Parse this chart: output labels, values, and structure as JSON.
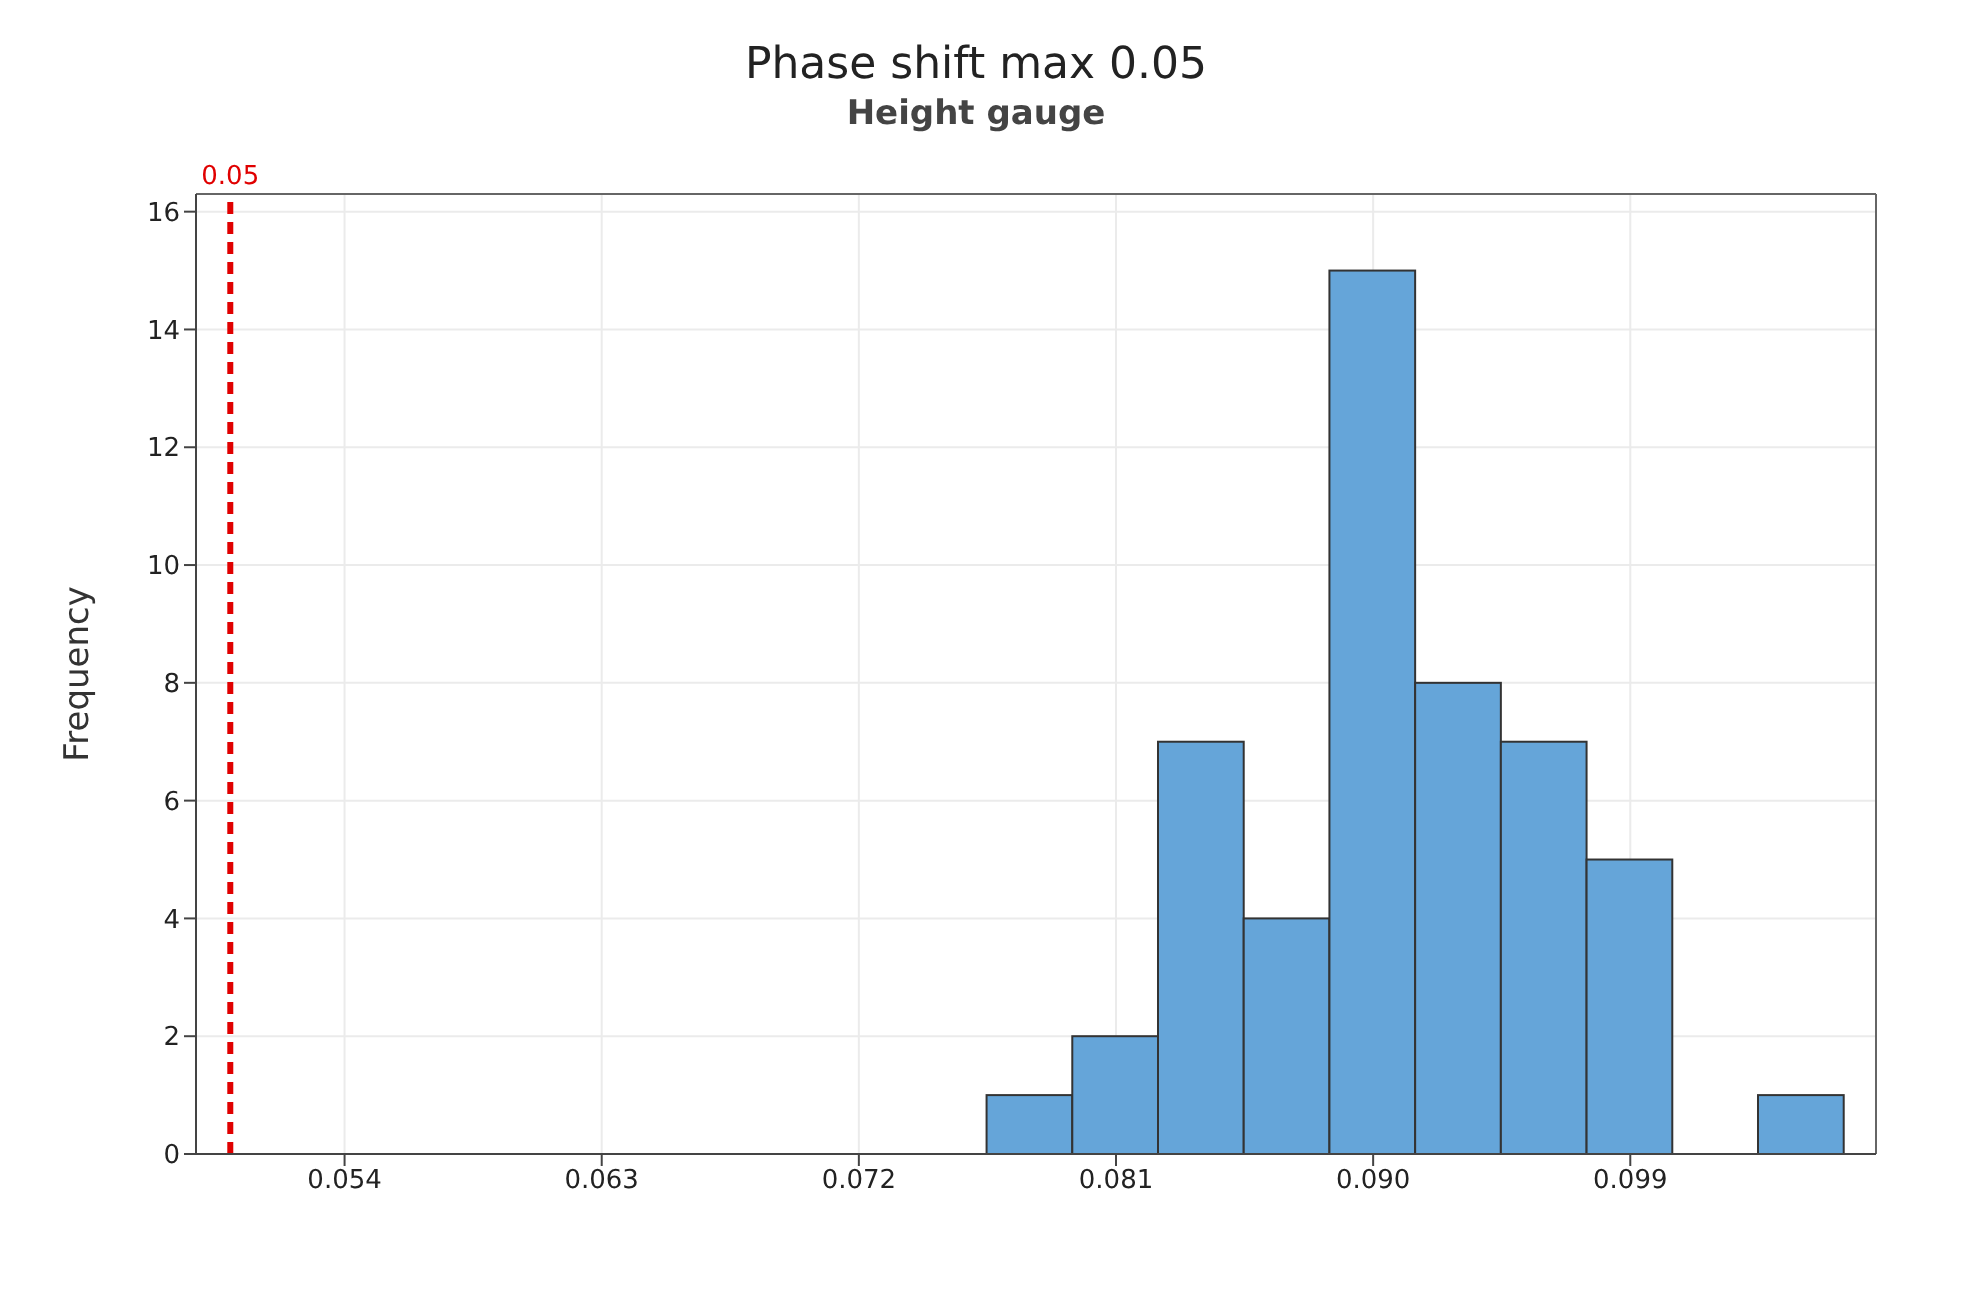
{
  "chart_data": {
    "type": "histogram",
    "title": "Phase shift  max 0.05",
    "subtitle": "Height gauge",
    "ylabel": "Frequency",
    "bins": [
      0.0765,
      0.0795,
      0.0825,
      0.0855,
      0.0885,
      0.0915,
      0.0945,
      0.0975,
      0.1005,
      0.1035,
      0.1065
    ],
    "values": [
      1,
      2,
      7,
      4,
      15,
      8,
      7,
      5,
      0,
      1
    ],
    "color": "#65a5d9",
    "xlim": [
      0.0488,
      0.1076
    ],
    "xticks": [
      0.054,
      0.063,
      0.072,
      0.081,
      {
        "value": 0.09,
        "label": "0.090"
      },
      0.099
    ],
    "ylim": [
      0,
      16.3
    ],
    "yticks": [
      0,
      2,
      4,
      6,
      8,
      10,
      12,
      14,
      16
    ],
    "ref_lines": [
      {
        "axis": "x",
        "value": 0.05,
        "label": "0.05",
        "color": "#e00000",
        "line_style": "dashed"
      }
    ],
    "grid": true
  }
}
